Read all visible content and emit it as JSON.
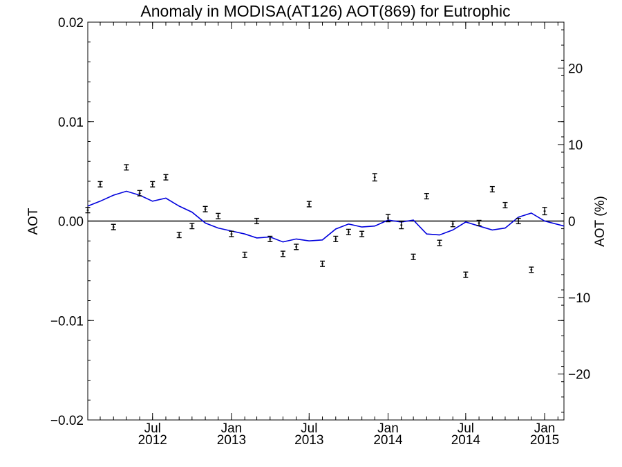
{
  "chart_data": {
    "type": "scatter",
    "title": "Anomaly in MODISA(AT126) AOT(869) for Eutrophic",
    "ylabel_left": "AOT",
    "ylabel_right": "AOT (%)",
    "x_range": [
      "2012-02-01",
      "2015-02-15"
    ],
    "ylim_left": [
      -0.02,
      0.02
    ],
    "ylim_right": [
      -26,
      26
    ],
    "left_ticks": [
      {
        "value": 0.02,
        "label": "0.02"
      },
      {
        "value": 0.01,
        "label": "0.01"
      },
      {
        "value": 0.0,
        "label": "0.00"
      },
      {
        "value": -0.01,
        "label": "−0.01"
      },
      {
        "value": -0.02,
        "label": "−0.02"
      }
    ],
    "right_ticks": [
      {
        "value": 20,
        "label": "20"
      },
      {
        "value": 10,
        "label": "10"
      },
      {
        "value": 0,
        "label": "0"
      },
      {
        "value": -10,
        "label": "−10"
      },
      {
        "value": -20,
        "label": "−20"
      }
    ],
    "x_ticks": [
      {
        "date": "2012-07-01",
        "month": "Jul",
        "year": "2012"
      },
      {
        "date": "2013-01-01",
        "month": "Jan",
        "year": "2013"
      },
      {
        "date": "2013-07-01",
        "month": "Jul",
        "year": "2013"
      },
      {
        "date": "2014-01-01",
        "month": "Jan",
        "year": "2014"
      },
      {
        "date": "2014-07-01",
        "month": "Jul",
        "year": "2014"
      },
      {
        "date": "2015-01-01",
        "month": "Jan",
        "year": "2015"
      }
    ],
    "zero_line": 0.0,
    "grid": false,
    "series": [
      {
        "kind": "points_with_errorbars",
        "color": "#000000",
        "points": [
          {
            "x": "2012-02-01",
            "y": 0.0011,
            "err": 0.0002
          },
          {
            "x": "2012-03-01",
            "y": 0.0037,
            "err": 0.0002
          },
          {
            "x": "2012-04-01",
            "y": -0.0006,
            "err": 0.0002
          },
          {
            "x": "2012-05-01",
            "y": 0.0054,
            "err": 0.0002
          },
          {
            "x": "2012-06-01",
            "y": 0.0028,
            "err": 0.0002
          },
          {
            "x": "2012-07-01",
            "y": 0.0037,
            "err": 0.0002
          },
          {
            "x": "2012-08-01",
            "y": 0.0044,
            "err": 0.0002
          },
          {
            "x": "2012-09-01",
            "y": -0.0014,
            "err": 0.0002
          },
          {
            "x": "2012-10-01",
            "y": -0.0005,
            "err": 0.0002
          },
          {
            "x": "2012-11-01",
            "y": 0.0012,
            "err": 0.0002
          },
          {
            "x": "2012-12-01",
            "y": 0.0005,
            "err": 0.0002
          },
          {
            "x": "2013-01-01",
            "y": -0.0013,
            "err": 0.0002
          },
          {
            "x": "2013-02-01",
            "y": -0.0034,
            "err": 0.0002
          },
          {
            "x": "2013-03-01",
            "y": 0.0,
            "err": 0.0002
          },
          {
            "x": "2013-04-01",
            "y": -0.0018,
            "err": 0.0002
          },
          {
            "x": "2013-05-01",
            "y": -0.0033,
            "err": 0.0002
          },
          {
            "x": "2013-06-01",
            "y": -0.0026,
            "err": 0.0002
          },
          {
            "x": "2013-07-01",
            "y": 0.0017,
            "err": 0.0002
          },
          {
            "x": "2013-08-01",
            "y": -0.0043,
            "err": 0.0002
          },
          {
            "x": "2013-09-01",
            "y": -0.0018,
            "err": 0.0002
          },
          {
            "x": "2013-10-01",
            "y": -0.0011,
            "err": 0.0002
          },
          {
            "x": "2013-11-01",
            "y": -0.0013,
            "err": 0.0002
          },
          {
            "x": "2013-12-01",
            "y": 0.0044,
            "err": 0.0003
          },
          {
            "x": "2014-01-01",
            "y": 0.0003,
            "err": 0.0003
          },
          {
            "x": "2014-02-01",
            "y": -0.0004,
            "err": 0.0003
          },
          {
            "x": "2014-03-01",
            "y": -0.0036,
            "err": 0.0002
          },
          {
            "x": "2014-04-01",
            "y": 0.0025,
            "err": 0.0002
          },
          {
            "x": "2014-05-01",
            "y": -0.0022,
            "err": 0.0002
          },
          {
            "x": "2014-06-01",
            "y": -0.0003,
            "err": 0.0002
          },
          {
            "x": "2014-07-01",
            "y": -0.0054,
            "err": 0.0002
          },
          {
            "x": "2014-08-01",
            "y": -0.0002,
            "err": 0.0002
          },
          {
            "x": "2014-09-01",
            "y": 0.0032,
            "err": 0.0002
          },
          {
            "x": "2014-10-01",
            "y": 0.0016,
            "err": 0.0002
          },
          {
            "x": "2014-11-01",
            "y": 0.0,
            "err": 0.0002
          },
          {
            "x": "2014-12-01",
            "y": -0.0049,
            "err": 0.0002
          },
          {
            "x": "2015-01-01",
            "y": 0.001,
            "err": 0.0003
          }
        ]
      },
      {
        "kind": "line",
        "color": "#0000dd",
        "points": [
          {
            "x": "2012-02-01",
            "y": 0.0015
          },
          {
            "x": "2012-03-01",
            "y": 0.002
          },
          {
            "x": "2012-04-01",
            "y": 0.0026
          },
          {
            "x": "2012-05-01",
            "y": 0.003
          },
          {
            "x": "2012-06-01",
            "y": 0.0026
          },
          {
            "x": "2012-07-01",
            "y": 0.002
          },
          {
            "x": "2012-08-01",
            "y": 0.0023
          },
          {
            "x": "2012-09-01",
            "y": 0.0015
          },
          {
            "x": "2012-10-01",
            "y": 0.0009
          },
          {
            "x": "2012-11-01",
            "y": -0.0002
          },
          {
            "x": "2012-12-01",
            "y": -0.0007
          },
          {
            "x": "2013-01-01",
            "y": -0.001
          },
          {
            "x": "2013-02-01",
            "y": -0.0013
          },
          {
            "x": "2013-03-01",
            "y": -0.0017
          },
          {
            "x": "2013-04-01",
            "y": -0.0016
          },
          {
            "x": "2013-05-01",
            "y": -0.0021
          },
          {
            "x": "2013-06-01",
            "y": -0.0018
          },
          {
            "x": "2013-07-01",
            "y": -0.002
          },
          {
            "x": "2013-08-01",
            "y": -0.0019
          },
          {
            "x": "2013-09-01",
            "y": -0.0008
          },
          {
            "x": "2013-10-01",
            "y": -0.0003
          },
          {
            "x": "2013-11-01",
            "y": -0.0006
          },
          {
            "x": "2013-12-01",
            "y": -0.0005
          },
          {
            "x": "2014-01-01",
            "y": 0.0001
          },
          {
            "x": "2014-02-01",
            "y": -0.0001
          },
          {
            "x": "2014-03-01",
            "y": 0.0001
          },
          {
            "x": "2014-04-01",
            "y": -0.0013
          },
          {
            "x": "2014-05-01",
            "y": -0.0014
          },
          {
            "x": "2014-06-01",
            "y": -0.0009
          },
          {
            "x": "2014-07-01",
            "y": -0.0001
          },
          {
            "x": "2014-08-01",
            "y": -0.0005
          },
          {
            "x": "2014-09-01",
            "y": -0.0009
          },
          {
            "x": "2014-10-01",
            "y": -0.0007
          },
          {
            "x": "2014-11-01",
            "y": 0.0004
          },
          {
            "x": "2014-12-01",
            "y": 0.0008
          },
          {
            "x": "2015-01-01",
            "y": 0.0
          },
          {
            "x": "2015-02-15",
            "y": -0.0005
          }
        ]
      }
    ]
  }
}
